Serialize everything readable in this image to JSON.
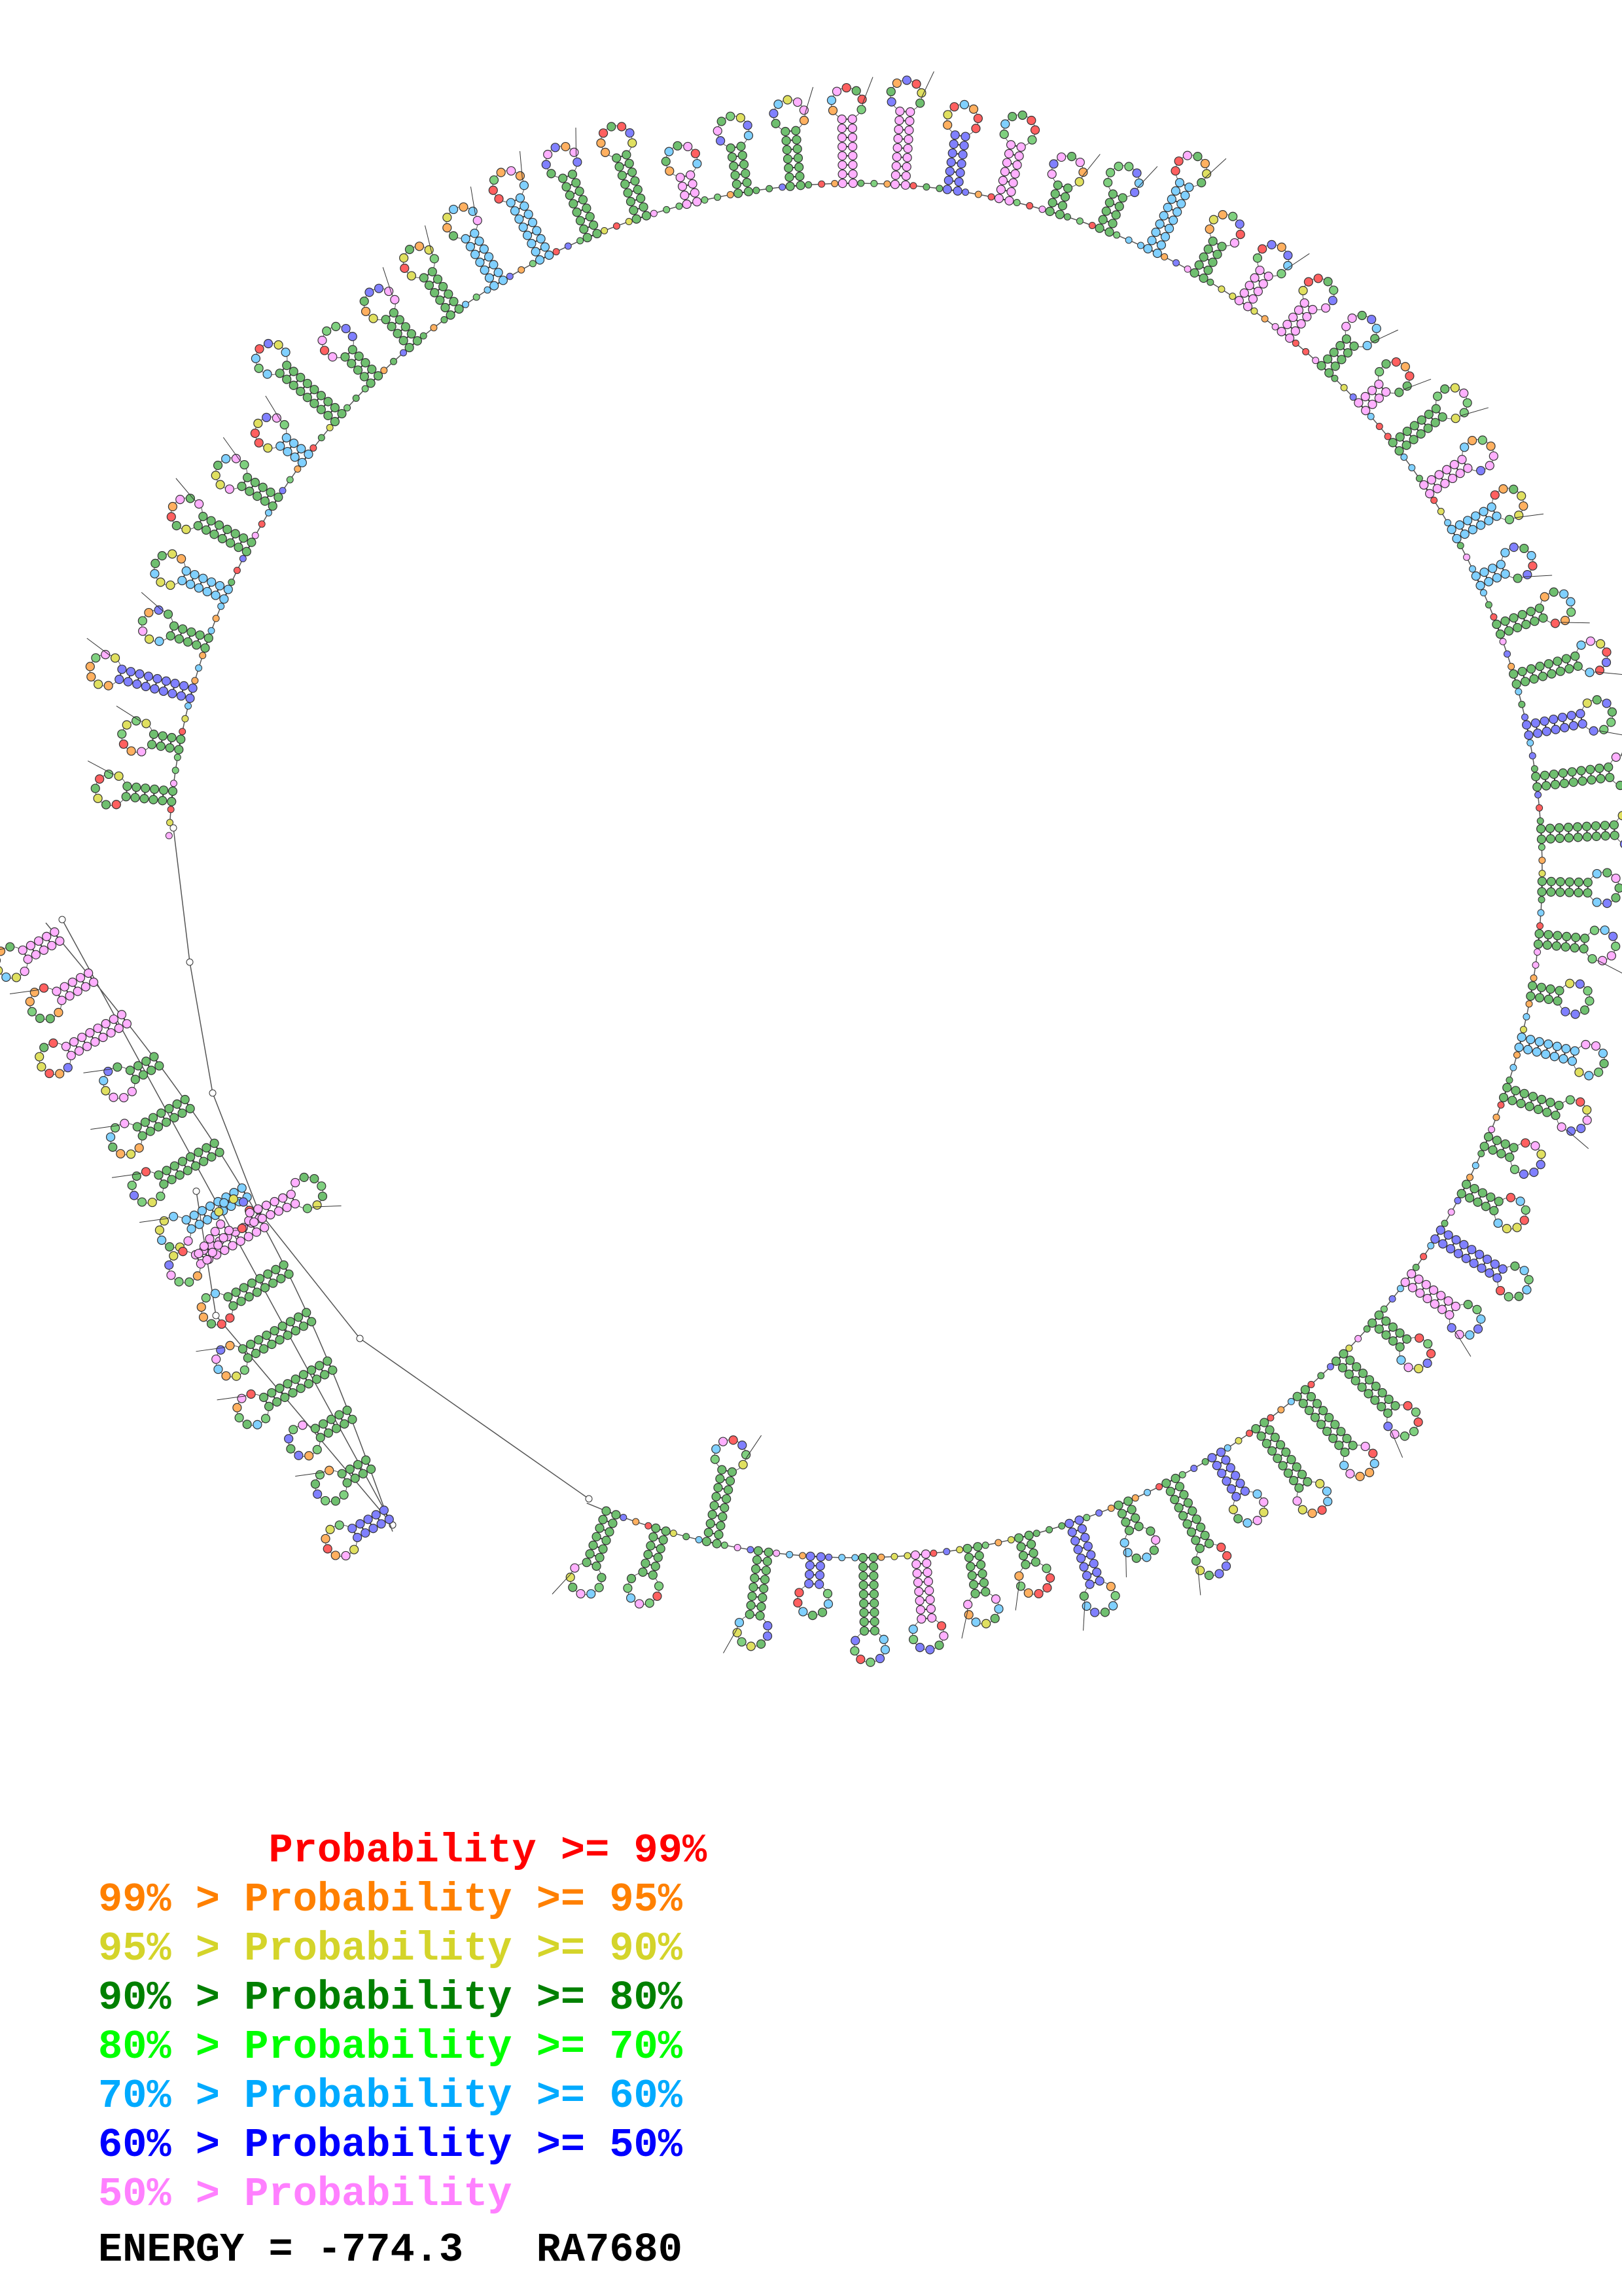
{
  "legend": [
    {
      "text": "       Probability >= 99%",
      "color": "#ff0000"
    },
    {
      "text": "99% > Probability >= 95%",
      "color": "#ff8000"
    },
    {
      "text": "95% > Probability >= 90%",
      "color": "#d4d42a"
    },
    {
      "text": "90% > Probability >= 80%",
      "color": "#008000"
    },
    {
      "text": "80% > Probability >= 70%",
      "color": "#00ff00"
    },
    {
      "text": "70% > Probability >= 60%",
      "color": "#00aaff"
    },
    {
      "text": "60% > Probability >= 50%",
      "color": "#0000ff"
    },
    {
      "text": "50% > Probability",
      "color": "#ff80ff"
    }
  ],
  "footer": {
    "energy_label": "ENERGY = -774.3",
    "sequence_id": "RA7680"
  },
  "diagram": {
    "type": "rna-secondary-structure",
    "backbone_color": "#555555",
    "nucleotide_fill_colors": [
      "#6fbf6f",
      "#7fd07f",
      "#8080ff",
      "#80d0ff",
      "#ffb0ff",
      "#ff6060",
      "#ffb060",
      "#e0e060"
    ]
  }
}
